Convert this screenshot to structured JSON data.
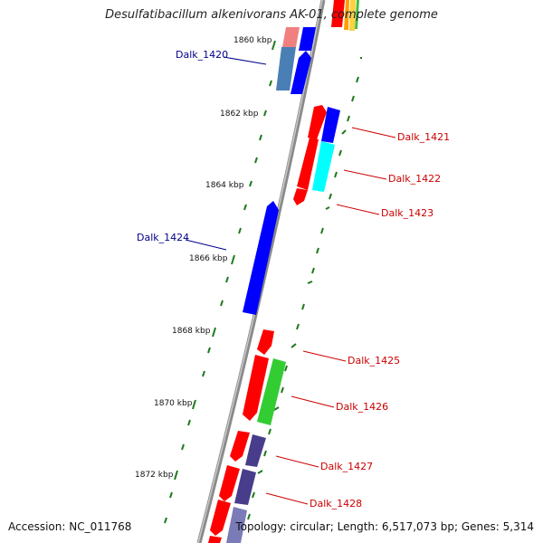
{
  "title": "Desulfatibacillum alkenivorans AK-01, complete genome",
  "footer": {
    "accession": "Accession: NC_011768",
    "summary": "Topology: circular; Length: 6,517,073 bp; Genes: 5,314"
  },
  "colors": {
    "backbone": "#8a8a8a",
    "tick": "#1e7a1e",
    "forward_gene": "#0000ff",
    "reverse_gene": "#ff0000",
    "forward_label": "#00008b",
    "reverse_label": "#cc0000"
  },
  "scale_labels": [
    "1860 kbp",
    "1862 kbp",
    "1864 kbp",
    "1866 kbp",
    "1868 kbp",
    "1870 kbp",
    "1872 kbp"
  ],
  "gene_labels": {
    "dalk_1420": "Dalk_1420",
    "dalk_1421": "Dalk_1421",
    "dalk_1422": "Dalk_1422",
    "dalk_1423": "Dalk_1423",
    "dalk_1424": "Dalk_1424",
    "dalk_1425": "Dalk_1425",
    "dalk_1426": "Dalk_1426",
    "dalk_1427": "Dalk_1427",
    "dalk_1428": "Dalk_1428"
  }
}
